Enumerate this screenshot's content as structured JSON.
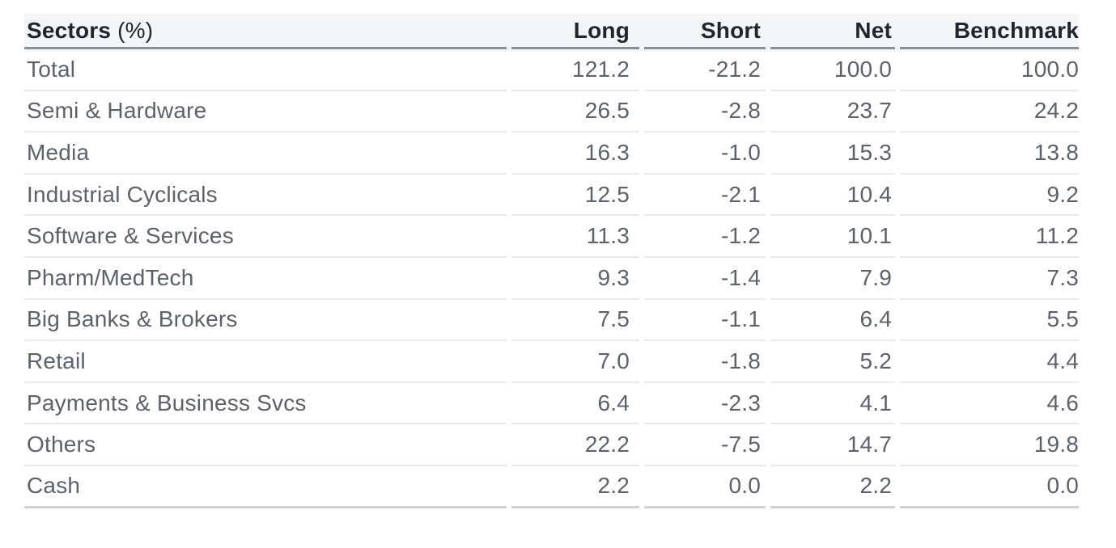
{
  "colors": {
    "page_bg": "#ffffff",
    "header_bg": "#f4f5f7",
    "header_text": "#22252e",
    "body_text": "#5d6268",
    "header_border": "#8c8e91",
    "row_border": "#e8e9eb",
    "bottom_border": "#cfd1d4"
  },
  "header": {
    "sector_label": "Sectors",
    "sector_unit": "(%)",
    "long": "Long",
    "short": "Short",
    "net": "Net",
    "benchmark": "Benchmark"
  },
  "chart_data": {
    "type": "table",
    "title": "Sectors (%)",
    "columns": [
      "Sectors (%)",
      "Long",
      "Short",
      "Net",
      "Benchmark"
    ],
    "rows": [
      {
        "sector": "Total",
        "long": "121.2",
        "short": "-21.2",
        "net": "100.0",
        "benchmark": "100.0"
      },
      {
        "sector": "Semi & Hardware",
        "long": "26.5",
        "short": "-2.8",
        "net": "23.7",
        "benchmark": "24.2"
      },
      {
        "sector": "Media",
        "long": "16.3",
        "short": "-1.0",
        "net": "15.3",
        "benchmark": "13.8"
      },
      {
        "sector": "Industrial Cyclicals",
        "long": "12.5",
        "short": "-2.1",
        "net": "10.4",
        "benchmark": "9.2"
      },
      {
        "sector": "Software & Services",
        "long": "11.3",
        "short": "-1.2",
        "net": "10.1",
        "benchmark": "11.2"
      },
      {
        "sector": "Pharm/MedTech",
        "long": "9.3",
        "short": "-1.4",
        "net": "7.9",
        "benchmark": "7.3"
      },
      {
        "sector": "Big Banks & Brokers",
        "long": "7.5",
        "short": "-1.1",
        "net": "6.4",
        "benchmark": "5.5"
      },
      {
        "sector": "Retail",
        "long": "7.0",
        "short": "-1.8",
        "net": "5.2",
        "benchmark": "4.4"
      },
      {
        "sector": "Payments & Business Svcs",
        "long": "6.4",
        "short": "-2.3",
        "net": "4.1",
        "benchmark": "4.6"
      },
      {
        "sector": "Others",
        "long": "22.2",
        "short": "-7.5",
        "net": "14.7",
        "benchmark": "19.8"
      },
      {
        "sector": "Cash",
        "long": "2.2",
        "short": "0.0",
        "net": "2.2",
        "benchmark": "0.0"
      }
    ]
  }
}
